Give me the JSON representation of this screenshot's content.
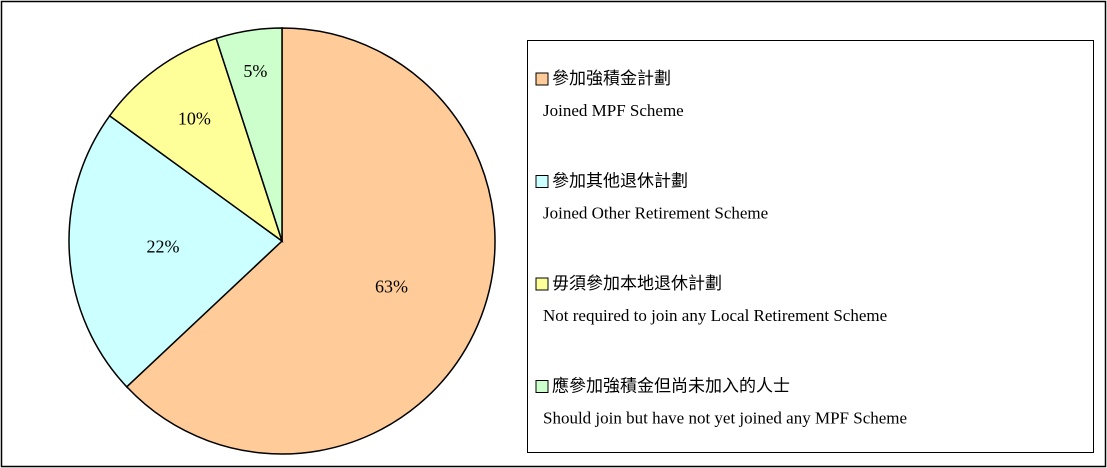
{
  "chart_data": {
    "type": "pie",
    "categories": [
      "參加強積金計劃",
      "參加其他退休計劃",
      "毋須參加本地退休計劃",
      "應參加強積金但尚未加入的人士"
    ],
    "category_subtitles": [
      "Joined MPF Scheme",
      "Joined Other Retirement Scheme",
      "Not required to join any Local Retirement Scheme",
      "Should join but have not yet joined any MPF Scheme"
    ],
    "values": [
      63,
      22,
      10,
      5
    ],
    "value_labels": [
      "63%",
      "22%",
      "10%",
      "5%"
    ],
    "colors": [
      "#ffcc99",
      "#ccffff",
      "#ffff99",
      "#ccffcc"
    ],
    "legend": "right"
  }
}
